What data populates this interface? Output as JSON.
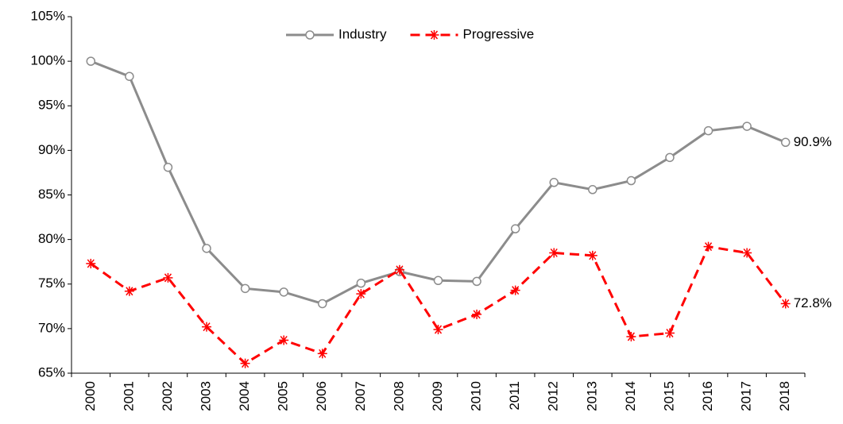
{
  "chart_data": {
    "type": "line",
    "categories": [
      "2000",
      "2001",
      "2002",
      "2003",
      "2004",
      "2005",
      "2006",
      "2007",
      "2008",
      "2009",
      "2010",
      "2011",
      "2012",
      "2013",
      "2014",
      "2015",
      "2016",
      "2017",
      "2018"
    ],
    "series": [
      {
        "name": "Industry",
        "color": "#8c8c8c",
        "marker": "circle",
        "dashed": false,
        "values": [
          100,
          98.3,
          88.1,
          79.0,
          74.5,
          74.1,
          72.8,
          75.1,
          76.4,
          75.4,
          75.3,
          81.2,
          86.4,
          85.6,
          86.6,
          89.2,
          92.2,
          92.7,
          90.9
        ],
        "value_labels": [
          null,
          null,
          null,
          null,
          null,
          null,
          null,
          null,
          null,
          null,
          null,
          null,
          null,
          null,
          null,
          null,
          null,
          null,
          "90.9%"
        ]
      },
      {
        "name": "Progressive",
        "color": "#ff0000",
        "marker": "asterisk",
        "dashed": true,
        "values": [
          77.3,
          74.2,
          75.7,
          70.2,
          66.1,
          68.7,
          67.2,
          73.9,
          76.6,
          69.9,
          71.6,
          74.3,
          78.5,
          78.2,
          69.1,
          69.5,
          79.2,
          78.5,
          72.8
        ],
        "value_labels": [
          null,
          null,
          null,
          null,
          null,
          null,
          null,
          null,
          null,
          null,
          null,
          null,
          null,
          null,
          null,
          null,
          null,
          null,
          "72.8%"
        ]
      }
    ],
    "ylim": [
      65,
      105
    ],
    "yticks": [
      {
        "value": 65,
        "label": "65%"
      },
      {
        "value": 70,
        "label": "70%"
      },
      {
        "value": 75,
        "label": "75%"
      },
      {
        "value": 80,
        "label": "80%"
      },
      {
        "value": 85,
        "label": "85%"
      },
      {
        "value": 90,
        "label": "90%"
      },
      {
        "value": 95,
        "label": "95%"
      },
      {
        "value": 100,
        "label": "100%"
      },
      {
        "value": 105,
        "label": "105%"
      }
    ],
    "legend": "top"
  }
}
